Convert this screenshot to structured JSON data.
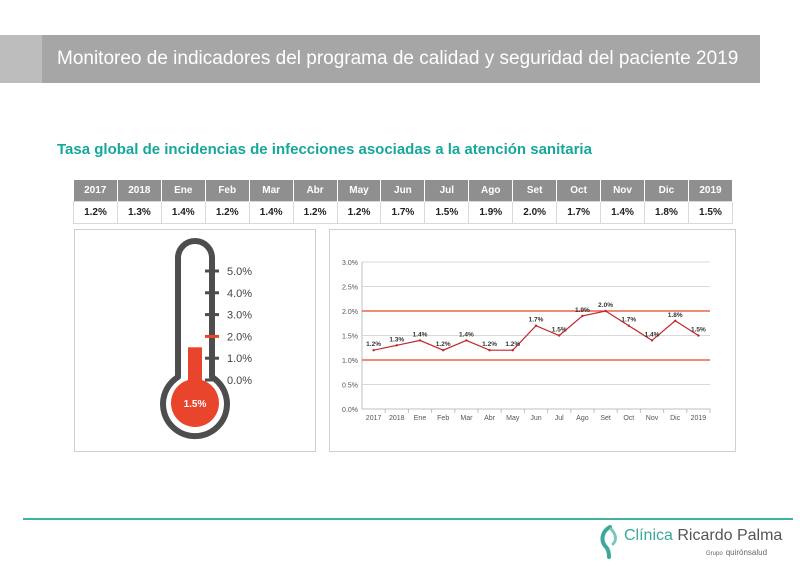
{
  "header": {
    "title": "Monitoreo de indicadores del programa de calidad y seguridad del paciente 2019"
  },
  "section": {
    "title": "Tasa global de incidencias de infecciones asociadas a la atención sanitaria"
  },
  "table": {
    "headers": [
      "2017",
      "2018",
      "Ene",
      "Feb",
      "Mar",
      "Abr",
      "May",
      "Jun",
      "Jul",
      "Ago",
      "Set",
      "Oct",
      "Nov",
      "Dic",
      "2019"
    ],
    "values": [
      "1.2%",
      "1.3%",
      "1.4%",
      "1.2%",
      "1.4%",
      "1.2%",
      "1.2%",
      "1.7%",
      "1.5%",
      "1.9%",
      "2.0%",
      "1.7%",
      "1.4%",
      "1.8%",
      "1.5%"
    ]
  },
  "thermometer": {
    "scale_labels": [
      "5.0%",
      "4.0%",
      "3.0%",
      "2.0%",
      "1.0%",
      "0.0%"
    ],
    "value": 1.5,
    "value_label": "1.5%",
    "threshold": 2.0,
    "fill_color": "#e8452c",
    "outline_color": "#4d4d4d",
    "threshold_color": "#e8452c"
  },
  "chart_data": {
    "type": "line",
    "categories": [
      "2017",
      "2018",
      "Ene",
      "Feb",
      "Mar",
      "Abr",
      "May",
      "Jun",
      "Jul",
      "Ago",
      "Set",
      "Oct",
      "Nov",
      "Dic",
      "2019"
    ],
    "series": [
      {
        "values": [
          1.2,
          1.3,
          1.4,
          1.2,
          1.4,
          1.2,
          1.2,
          1.7,
          1.5,
          1.9,
          2.0,
          1.7,
          1.4,
          1.8,
          1.5
        ],
        "color": "#c1272d"
      }
    ],
    "data_labels": [
      "1.2%",
      "1.3%",
      "1.4%",
      "1.2%",
      "1.4%",
      "1.2%",
      "1.2%",
      "1.7%",
      "1.5%",
      "1.9%",
      "2.0%",
      "1.7%",
      "1.4%",
      "1.8%",
      "1.5%"
    ],
    "reference_lines": [
      {
        "value": 2.0,
        "color": "#e8452c"
      },
      {
        "value": 1.0,
        "color": "#e8452c"
      }
    ],
    "y_ticks": [
      0.0,
      0.5,
      1.0,
      1.5,
      2.0,
      2.5,
      3.0
    ],
    "y_tick_labels": [
      "0.0%",
      "0.5%",
      "1.0%",
      "1.5%",
      "2.0%",
      "2.5%",
      "3.0%"
    ],
    "ylim": [
      0,
      3.0
    ],
    "grid": true,
    "title": "",
    "xlabel": "",
    "ylabel": ""
  },
  "footer": {
    "logo_brand": "Clínica",
    "logo_name": "Ricardo Palma",
    "logo_group": "Grupo",
    "logo_company": "quirónsalud",
    "accent": "#3aa89a"
  }
}
